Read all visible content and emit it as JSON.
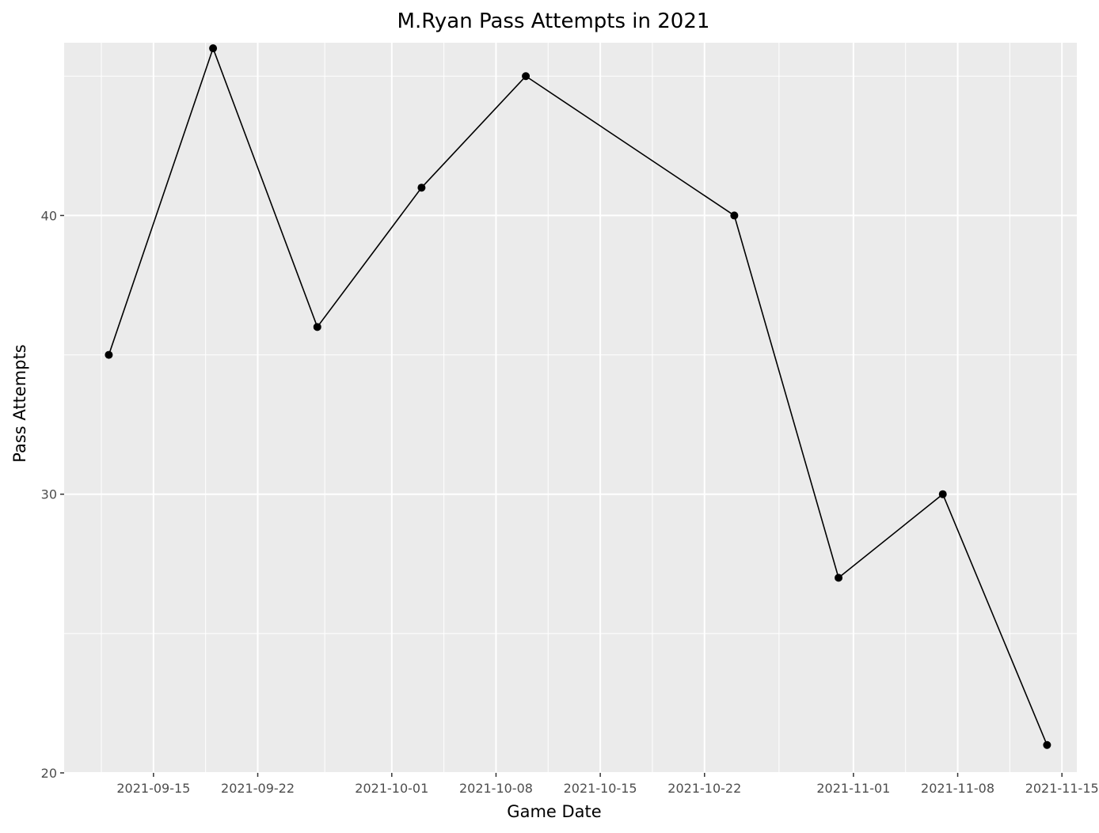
{
  "chart_data": {
    "type": "line",
    "title": "M.Ryan Pass Attempts in 2021",
    "xlabel": "Game Date",
    "ylabel": "Pass Attempts",
    "x_type": "date",
    "xlim": [
      "2021-09-09",
      "2021-11-16"
    ],
    "ylim": [
      20,
      46.2
    ],
    "x_ticks": [
      "2021-09-15",
      "2021-09-22",
      "2021-10-01",
      "2021-10-08",
      "2021-10-15",
      "2021-10-22",
      "2021-11-01",
      "2021-11-08",
      "2021-11-15"
    ],
    "y_ticks": [
      20,
      30,
      40
    ],
    "grid": true,
    "legend": "none",
    "series": [
      {
        "x": [
          "2021-09-12",
          "2021-09-19",
          "2021-09-26",
          "2021-10-03",
          "2021-10-10",
          "2021-10-24",
          "2021-10-31",
          "2021-11-07",
          "2021-11-14"
        ],
        "y": [
          35,
          46,
          36,
          41,
          45,
          40,
          27,
          30,
          21
        ]
      }
    ],
    "colors": {
      "panel": "#ebebeb",
      "grid": "#ffffff",
      "line": "#000000",
      "point": "#000000"
    }
  }
}
